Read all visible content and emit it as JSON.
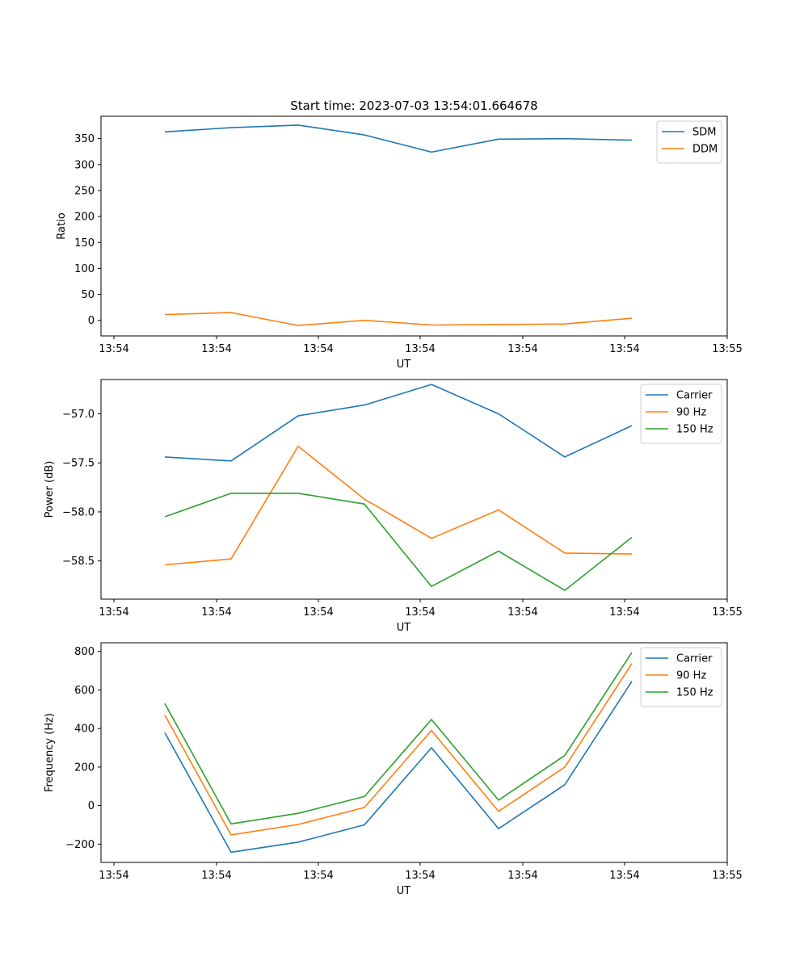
{
  "chart_data": [
    {
      "type": "line",
      "title": "Start time: 2023-07-03 13:54:01.664678",
      "xlabel": "UT",
      "ylabel": "Ratio",
      "x_tick_labels": [
        "13:54",
        "13:54",
        "13:54",
        "13:54",
        "13:54",
        "13:54",
        "13:54",
        "13:55"
      ],
      "y_ticks": [
        0,
        50,
        100,
        150,
        200,
        250,
        300,
        350
      ],
      "y_tick_labels": [
        "0",
        "50",
        "100",
        "150",
        "200",
        "250",
        "300",
        "350"
      ],
      "ylim": [
        -30,
        393
      ],
      "legend_position": "top-right",
      "series": [
        {
          "name": "SDM",
          "color": "#1f77b4",
          "values": [
            363,
            371,
            376,
            357,
            324,
            349,
            350,
            347
          ]
        },
        {
          "name": "DDM",
          "color": "#ff7f0e",
          "values": [
            11,
            15,
            -10,
            0,
            -9,
            -8,
            -7,
            4
          ]
        }
      ]
    },
    {
      "type": "line",
      "title": "",
      "xlabel": "UT",
      "ylabel": "Power (dB)",
      "x_tick_labels": [
        "13:54",
        "13:54",
        "13:54",
        "13:54",
        "13:54",
        "13:54",
        "13:54",
        "13:55"
      ],
      "y_ticks": [
        -58.5,
        -58.0,
        -57.5,
        -57.0
      ],
      "y_tick_labels": [
        "−58.5",
        "−58.0",
        "−57.5",
        "−57.0"
      ],
      "ylim": [
        -58.89,
        -56.65
      ],
      "legend_position": "top-right",
      "series": [
        {
          "name": "Carrier",
          "color": "#1f77b4",
          "values": [
            -57.44,
            -57.48,
            -57.02,
            -56.91,
            -56.7,
            -57.0,
            -57.44,
            -57.12
          ]
        },
        {
          "name": "90 Hz",
          "color": "#ff7f0e",
          "values": [
            -58.54,
            -58.48,
            -57.33,
            -57.87,
            -58.27,
            -57.98,
            -58.42,
            -58.43
          ]
        },
        {
          "name": "150 Hz",
          "color": "#2ca02c",
          "values": [
            -58.05,
            -57.81,
            -57.81,
            -57.92,
            -58.76,
            -58.4,
            -58.8,
            -58.26
          ]
        }
      ]
    },
    {
      "type": "line",
      "title": "",
      "xlabel": "UT",
      "ylabel": "Frequency (Hz)",
      "x_tick_labels": [
        "13:54",
        "13:54",
        "13:54",
        "13:54",
        "13:54",
        "13:54",
        "13:54",
        "13:55"
      ],
      "y_ticks": [
        -200,
        0,
        200,
        400,
        600,
        800
      ],
      "y_tick_labels": [
        "−200",
        "0",
        "200",
        "400",
        "600",
        "800"
      ],
      "ylim": [
        -295,
        845
      ],
      "legend_position": "top-right",
      "series": [
        {
          "name": "Carrier",
          "color": "#1f77b4",
          "values": [
            378,
            -242,
            -190,
            -100,
            300,
            -120,
            108,
            645
          ]
        },
        {
          "name": "90 Hz",
          "color": "#ff7f0e",
          "values": [
            470,
            -152,
            -98,
            -10,
            390,
            -30,
            200,
            737
          ]
        },
        {
          "name": "150 Hz",
          "color": "#2ca02c",
          "values": [
            530,
            -95,
            -40,
            47,
            447,
            28,
            260,
            795
          ]
        }
      ]
    }
  ]
}
